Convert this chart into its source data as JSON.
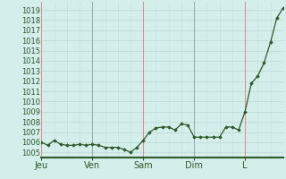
{
  "background_color": "#d4eeeb",
  "plot_bg_color": "#d4eeeb",
  "line_color": "#2d5a27",
  "marker_color": "#2d5a27",
  "grid_color_h": "#b8d8d4",
  "grid_color_v_minor": "#c8e4e0",
  "grid_color_v_major": "#c0a8a8",
  "axis_color": "#2d5a27",
  "ylim": [
    1004.5,
    1019.8
  ],
  "yticks": [
    1005,
    1006,
    1007,
    1008,
    1009,
    1010,
    1011,
    1012,
    1013,
    1014,
    1015,
    1016,
    1017,
    1018,
    1019
  ],
  "xtick_labels": [
    "Jeu",
    "Ven",
    "Sam",
    "Dim",
    "L"
  ],
  "xtick_positions": [
    0,
    8,
    16,
    24,
    32
  ],
  "day_vlines": [
    0,
    8,
    16,
    24,
    32
  ],
  "n_points": 39,
  "y_values": [
    1006.0,
    1005.7,
    1006.2,
    1005.8,
    1005.7,
    1005.7,
    1005.8,
    1005.7,
    1005.8,
    1005.7,
    1005.5,
    1005.5,
    1005.5,
    1005.3,
    1005.0,
    1005.5,
    1006.2,
    1007.0,
    1007.4,
    1007.5,
    1007.5,
    1007.2,
    1007.8,
    1007.7,
    1006.5,
    1006.5,
    1006.5,
    1006.5,
    1006.5,
    1007.5,
    1007.5,
    1007.2,
    1009.0,
    1011.8,
    1012.5,
    1013.8,
    1015.8,
    1018.2,
    1019.2
  ],
  "ylabel_fontsize": 6,
  "xlabel_fontsize": 7
}
